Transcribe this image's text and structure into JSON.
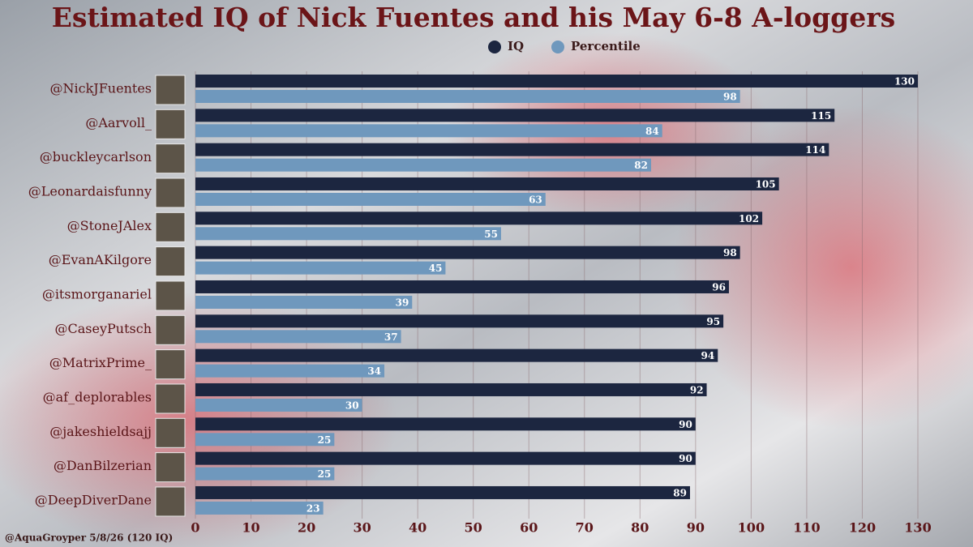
{
  "chart_data": {
    "type": "bar",
    "orientation": "horizontal",
    "title": "Estimated IQ of Nick Fuentes and his May 6-8 A-loggers",
    "annotation": "@AquaGroyper 5/8/26 (120 IQ)",
    "categories": [
      "@NickJFuentes",
      "@Aarvoll_",
      "@buckleycarlson",
      "@Leonardaisfunny",
      "@StoneJAlex",
      "@EvanAKilgore",
      "@itsmorganariel",
      "@CaseyPutsch",
      "@MatrixPrime_",
      "@af_deplorables",
      "@jakeshieldsajj",
      "@DanBilzerian",
      "@DeepDiverDane"
    ],
    "series": [
      {
        "name": "IQ",
        "color": "#1c2640",
        "values": [
          130,
          115,
          114,
          105,
          102,
          98,
          96,
          95,
          94,
          92,
          90,
          90,
          89
        ]
      },
      {
        "name": "Percentile",
        "color": "#6f98bd",
        "values": [
          98,
          84,
          82,
          63,
          55,
          45,
          39,
          37,
          34,
          30,
          25,
          25,
          23
        ]
      }
    ],
    "xlim": [
      0,
      130
    ],
    "xticks": [
      0,
      10,
      20,
      30,
      40,
      50,
      60,
      70,
      80,
      90,
      100,
      110,
      120,
      130
    ],
    "grid": true,
    "legend": "top"
  }
}
